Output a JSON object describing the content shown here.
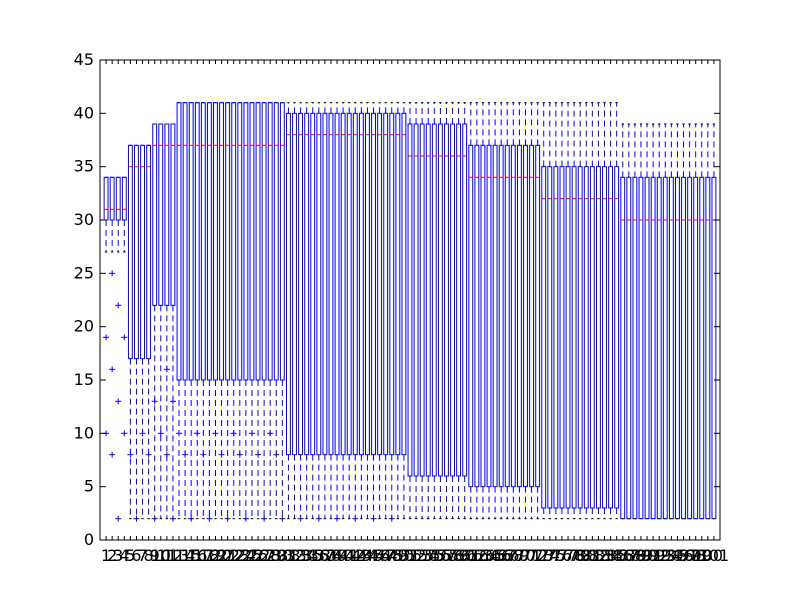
{
  "chart_data": {
    "type": "boxplot",
    "title": "",
    "xlabel": "",
    "ylabel": "",
    "ylim": [
      0,
      45
    ],
    "yticks": [
      0,
      5,
      10,
      15,
      20,
      25,
      30,
      35,
      40,
      45
    ],
    "n_boxes": 101,
    "grid": false,
    "legend": "none",
    "colors": {
      "box": "#0000ff",
      "median": "#ff0000",
      "flier": "#0000ff",
      "frame": "#000000"
    },
    "groups": [
      {
        "positions": [
          1,
          4
        ],
        "q1": 30,
        "median": 31,
        "q3": 34,
        "whisker_low": 27,
        "whisker_high": 34
      },
      {
        "positions": [
          5,
          8
        ],
        "q1": 17,
        "median": 35,
        "q3": 37,
        "whisker_low": 2,
        "whisker_high": 37
      },
      {
        "positions": [
          9,
          12
        ],
        "q1": 22,
        "median": 37,
        "q3": 39,
        "whisker_low": 2,
        "whisker_high": 39
      },
      {
        "positions": [
          13,
          30
        ],
        "q1": 15,
        "median": 37,
        "q3": 41,
        "whisker_low": 2,
        "whisker_high": 41
      },
      {
        "positions": [
          31,
          50
        ],
        "q1": 8,
        "median": 38,
        "q3": 40,
        "whisker_low": 2,
        "whisker_high": 41
      },
      {
        "positions": [
          51,
          60
        ],
        "q1": 6,
        "median": 36,
        "q3": 39,
        "whisker_low": 2,
        "whisker_high": 41
      },
      {
        "positions": [
          61,
          72
        ],
        "q1": 5,
        "median": 34,
        "q3": 37,
        "whisker_low": 2,
        "whisker_high": 41
      },
      {
        "positions": [
          73,
          85
        ],
        "q1": 3,
        "median": 32,
        "q3": 35,
        "whisker_low": 2,
        "whisker_high": 41
      },
      {
        "positions": [
          86,
          101
        ],
        "q1": 2,
        "median": 30,
        "q3": 34,
        "whisker_low": 2,
        "whisker_high": 39
      }
    ],
    "fliers_pattern": [
      2,
      8,
      10,
      13,
      16,
      19,
      22,
      25,
      28,
      31,
      33
    ]
  }
}
